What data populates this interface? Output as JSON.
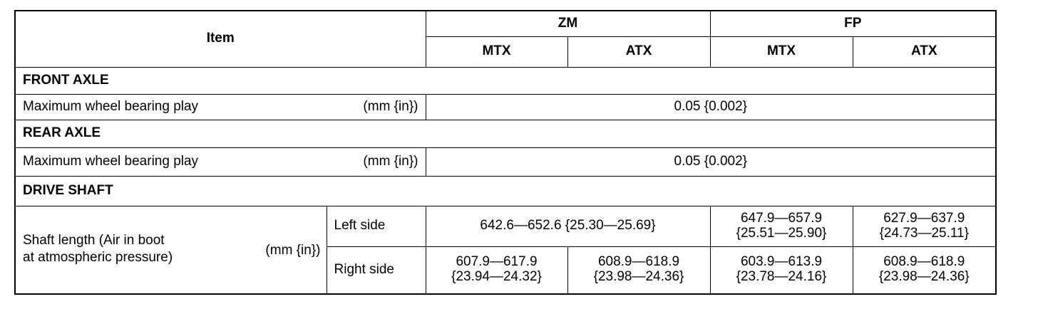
{
  "header": {
    "item": "Item",
    "groups": [
      "ZM",
      "FP"
    ],
    "subcolumns": [
      "MTX",
      "ATX",
      "MTX",
      "ATX"
    ]
  },
  "sections": [
    {
      "title": "FRONT AXLE",
      "row": {
        "label": "Maximum wheel bearing play",
        "unit": "(mm {in})",
        "value": "0.05 {0.002}"
      }
    },
    {
      "title": "REAR AXLE",
      "row": {
        "label": "Maximum wheel bearing play",
        "unit": "(mm {in})",
        "value": "0.05 {0.002}"
      }
    },
    {
      "title": "DRIVE SHAFT",
      "shaft": {
        "label_line1": "Shaft length (Air in boot",
        "label_line2": "at atmospheric pressure)",
        "unit": "(mm {in})",
        "left": {
          "label": "Left side",
          "zm": "642.6—652.6 {25.30—25.69}",
          "fp_mtx": [
            "647.9—657.9",
            "{25.51—25.90}"
          ],
          "fp_atx": [
            "627.9—637.9",
            "{24.73—25.11}"
          ]
        },
        "right": {
          "label": "Right side",
          "zm_mtx": [
            "607.9—617.9",
            "{23.94—24.32}"
          ],
          "zm_atx": [
            "608.9—618.9",
            "{23.98—24.36}"
          ],
          "fp_mtx": [
            "603.9—613.9",
            "{23.78—24.16}"
          ],
          "fp_atx": [
            "608.9—618.9",
            "{23.98—24.36}"
          ]
        }
      }
    }
  ]
}
